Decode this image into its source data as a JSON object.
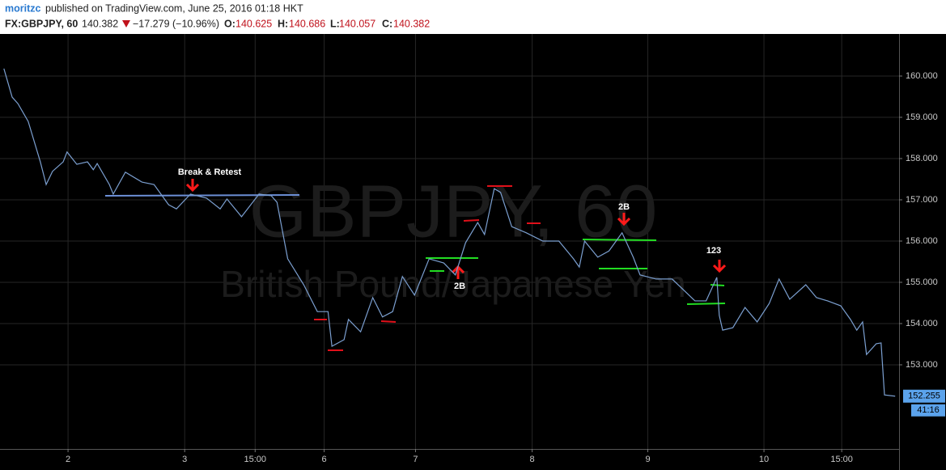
{
  "header": {
    "author": "moritzc",
    "published": "published on TradingView.com, June 25, 2016 01:18 HKT",
    "symbol": "FX:GBPJPY, 60",
    "price": "140.382",
    "change": "−17.279 (−10.96%)",
    "open_label": "O:",
    "open": "140.625",
    "high_label": "H:",
    "high": "140.686",
    "low_label": "L:",
    "low": "140.057",
    "close_label": "C:",
    "close": "140.382"
  },
  "chart_data": {
    "type": "line",
    "watermark": "GBPJPY, 60",
    "watermark_subtitle": "British Pound/Japanese Yen",
    "color": "#7b9fd0",
    "grid": true,
    "x": [
      0.8,
      2.5,
      3.7,
      5.8,
      8.3,
      9.5,
      10.8,
      13.0,
      13.8,
      15.8,
      18.0,
      19.2,
      20.0,
      22.5,
      23.3,
      25.8,
      29.2,
      31.7,
      34.7,
      36.3,
      39.2,
      42.5,
      45.3,
      46.7,
      49.7,
      53.3,
      55.8,
      57.0,
      59.2,
      62.5,
      65.3,
      67.5,
      68.3,
      70.8,
      71.7,
      74.2,
      76.7,
      78.7,
      80.8,
      82.8,
      85.3,
      88.3,
      91.3,
      93.7,
      95.8,
      98.3,
      99.7,
      101.7,
      103.0,
      105.3,
      108.3,
      111.7,
      115.0,
      118.0,
      119.2,
      120.3,
      123.0,
      125.3,
      128.0,
      130.3,
      131.7,
      135.0,
      138.3,
      143.0,
      145.3,
      147.5,
      148.0,
      148.7,
      150.8,
      153.3,
      155.8,
      158.3,
      160.3,
      162.5,
      165.8,
      168.0,
      170.3,
      173.0,
      175.0,
      176.3,
      177.5,
      178.3,
      180.3,
      181.3,
      182.0,
      184.2
    ],
    "values": [
      160.18,
      159.49,
      159.33,
      158.9,
      157.92,
      157.37,
      157.69,
      157.92,
      158.16,
      157.86,
      157.92,
      157.73,
      157.88,
      157.37,
      157.14,
      157.67,
      157.43,
      157.37,
      156.88,
      156.78,
      157.14,
      157.04,
      156.78,
      157.02,
      156.59,
      157.14,
      157.1,
      156.94,
      155.57,
      154.94,
      154.29,
      154.29,
      153.45,
      153.61,
      154.1,
      153.8,
      154.63,
      154.16,
      154.29,
      155.14,
      154.69,
      155.57,
      155.47,
      155.18,
      155.96,
      156.45,
      156.16,
      157.27,
      157.18,
      156.35,
      156.2,
      156.0,
      156.0,
      155.57,
      155.37,
      156.0,
      155.61,
      155.76,
      156.2,
      155.61,
      155.18,
      155.08,
      155.08,
      154.55,
      154.55,
      155.12,
      154.2,
      153.84,
      153.9,
      154.39,
      154.04,
      154.49,
      155.08,
      154.59,
      154.94,
      154.63,
      154.55,
      154.43,
      154.1,
      153.84,
      154.04,
      153.25,
      153.51,
      153.53,
      152.27,
      152.24
    ],
    "xlim": [
      0,
      185
    ],
    "xticks": [
      {
        "value": 14,
        "label": "2"
      },
      {
        "value": 38,
        "label": "3"
      },
      {
        "value": 52.5,
        "label": "15:00"
      },
      {
        "value": 66.7,
        "label": "6"
      },
      {
        "value": 85.5,
        "label": "7"
      },
      {
        "value": 109.5,
        "label": "8"
      },
      {
        "value": 133.3,
        "label": "9"
      },
      {
        "value": 157.2,
        "label": "10"
      },
      {
        "value": 173.2,
        "label": "15:00"
      }
    ],
    "ylim": [
      150.96,
      161.02
    ],
    "yticks": [
      {
        "value": 153,
        "label": "153.000"
      },
      {
        "value": 154,
        "label": "154.000"
      },
      {
        "value": 155,
        "label": "155.000"
      },
      {
        "value": 156,
        "label": "156.000"
      },
      {
        "value": 157,
        "label": "157.000"
      },
      {
        "value": 158,
        "label": "158.000"
      },
      {
        "value": 159,
        "label": "159.000"
      },
      {
        "value": 160,
        "label": "160.000"
      }
    ],
    "last_price_label": "152.255",
    "countdown": "41:16",
    "annotations": [
      "Break & Retest",
      "2B",
      "2B",
      "123"
    ]
  }
}
